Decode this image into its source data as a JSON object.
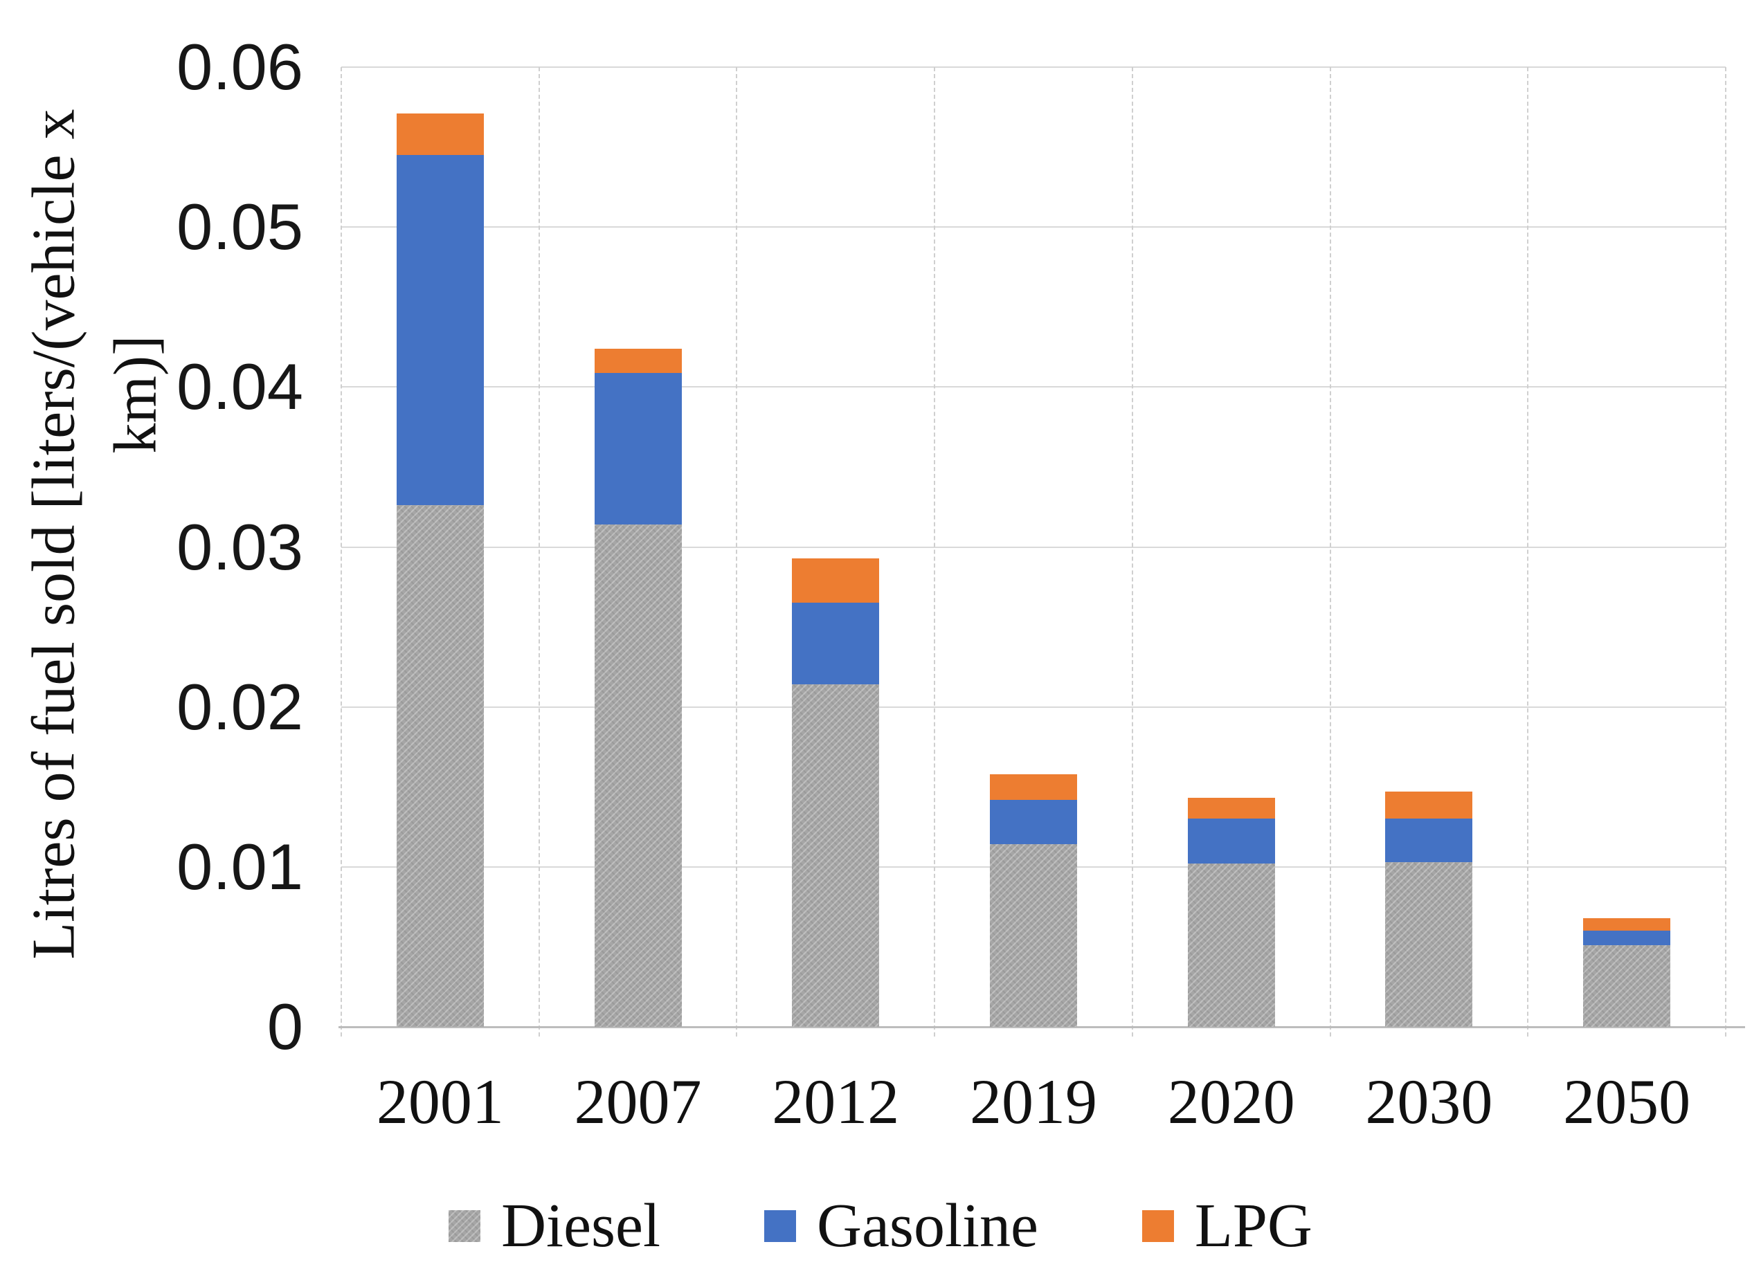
{
  "chart_data": {
    "type": "bar",
    "stacked": true,
    "title": "",
    "categories": [
      "2001",
      "2007",
      "2012",
      "2019",
      "2020",
      "2030",
      "2050"
    ],
    "series": [
      {
        "name": "Diesel",
        "color": "#a6a6a6",
        "values": [
          0.0326,
          0.0314,
          0.0214,
          0.0114,
          0.0102,
          0.0103,
          0.0051
        ]
      },
      {
        "name": "Gasoline",
        "color": "#4472c4",
        "values": [
          0.0219,
          0.0095,
          0.0051,
          0.0028,
          0.0028,
          0.0027,
          0.0009
        ]
      },
      {
        "name": "LPG",
        "color": "#ed7d31",
        "values": [
          0.0026,
          0.0015,
          0.0028,
          0.0016,
          0.0013,
          0.0017,
          0.0008
        ]
      }
    ],
    "ylabel_line1": "Litres of fuel sold [liters/(vehicle x",
    "ylabel_line2": "km)]",
    "ylim": [
      0,
      0.06
    ],
    "ytick_step": 0.01,
    "yticks_top_to_bottom": [
      "0.06",
      "0.05",
      "0.04",
      "0.03",
      "0.02",
      "0.01",
      "0"
    ],
    "grid": true,
    "legend_position": "bottom",
    "colors": {
      "gridline": "#d9d9d9",
      "axis_line": "#bdbdbd",
      "text": "#111111",
      "background": "#ffffff"
    }
  }
}
